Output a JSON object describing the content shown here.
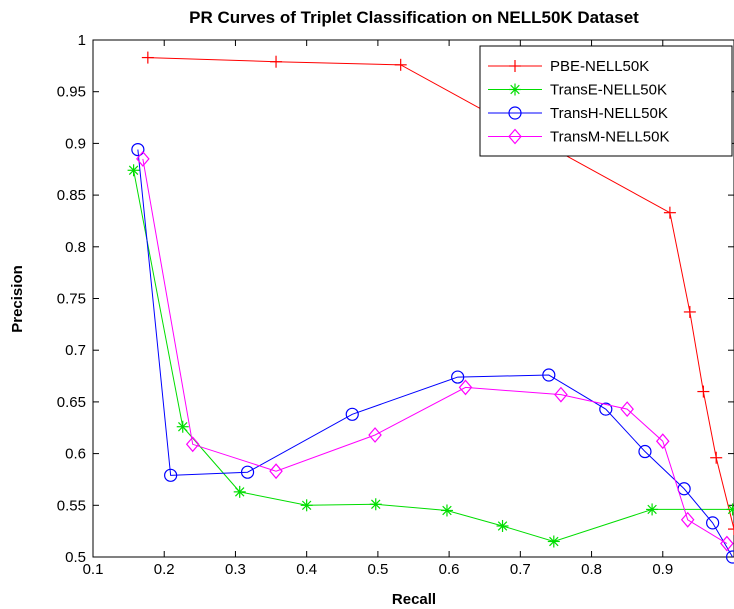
{
  "chart_data": {
    "type": "line",
    "title": "PR Curves of Triplet Classification on NELL50K Dataset",
    "xlabel": "Recall",
    "ylabel": "Precision",
    "xlim": [
      0.1,
      1.0
    ],
    "ylim": [
      0.5,
      1.0
    ],
    "xticks": [
      0.1,
      0.2,
      0.3,
      0.4,
      0.5,
      0.6,
      0.7,
      0.8,
      0.9
    ],
    "xtick_labels": [
      "0.1",
      "0.2",
      "0.3",
      "0.4",
      "0.5",
      "0.6",
      "0.7",
      "0.8",
      "0.9"
    ],
    "yticks": [
      0.5,
      0.55,
      0.6,
      0.65,
      0.7,
      0.75,
      0.8,
      0.85,
      0.9,
      0.95,
      1.0
    ],
    "ytick_labels": [
      "0.5",
      "0.55",
      "0.6",
      "0.65",
      "0.7",
      "0.75",
      "0.8",
      "0.85",
      "0.9",
      "0.95",
      "1"
    ],
    "grid": false,
    "legend_position": "top-right",
    "series": [
      {
        "name": "PBE-NELL50K",
        "color": "#ff0000",
        "marker": "plus",
        "x": [
          0.177,
          0.357,
          0.532,
          0.91,
          0.938,
          0.957,
          0.975,
          1.0
        ],
        "y": [
          0.983,
          0.979,
          0.976,
          0.833,
          0.737,
          0.66,
          0.596,
          0.527
        ]
      },
      {
        "name": "TransE-NELL50K",
        "color": "#00dd00",
        "marker": "asterisk",
        "x": [
          0.157,
          0.226,
          0.306,
          0.4,
          0.497,
          0.597,
          0.675,
          0.747,
          0.885,
          0.998
        ],
        "y": [
          0.874,
          0.626,
          0.563,
          0.55,
          0.551,
          0.545,
          0.53,
          0.515,
          0.546,
          0.546
        ]
      },
      {
        "name": "TransH-NELL50K",
        "color": "#0000ff",
        "marker": "circle",
        "x": [
          0.163,
          0.209,
          0.317,
          0.464,
          0.612,
          0.74,
          0.82,
          0.875,
          0.93,
          0.97,
          0.998
        ],
        "y": [
          0.894,
          0.579,
          0.582,
          0.638,
          0.674,
          0.676,
          0.643,
          0.602,
          0.566,
          0.533,
          0.5
        ]
      },
      {
        "name": "TransM-NELL50K",
        "color": "#ff00ff",
        "marker": "diamond",
        "x": [
          0.17,
          0.24,
          0.357,
          0.496,
          0.623,
          0.757,
          0.85,
          0.9,
          0.935,
          0.99
        ],
        "y": [
          0.885,
          0.609,
          0.583,
          0.618,
          0.664,
          0.657,
          0.643,
          0.612,
          0.536,
          0.513
        ]
      }
    ]
  }
}
